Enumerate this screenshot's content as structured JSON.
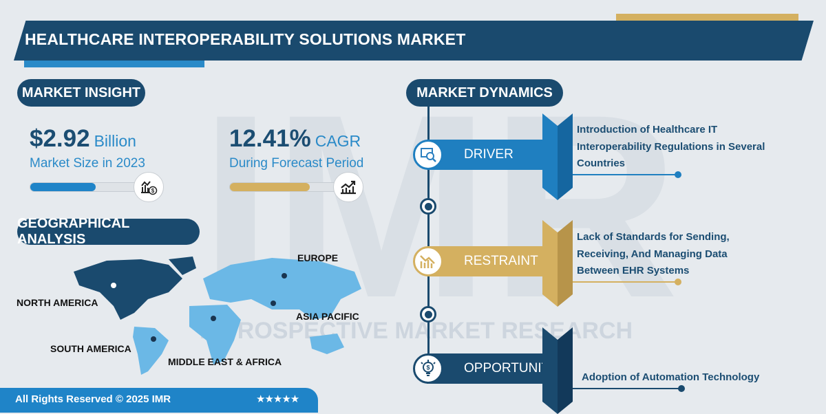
{
  "header": {
    "title": "HEALTHCARE INTEROPERABILITY SOLUTIONS MARKET"
  },
  "watermark": {
    "logo": "IMR",
    "text": "INTROSPECTIVE MARKET RESEARCH"
  },
  "market_insight": {
    "heading": "MARKET INSIGHT",
    "market_size": {
      "value": "$2.92",
      "unit": "Billion",
      "label": "Market Size in 2023",
      "progress_percent": 55,
      "icon": "chart-dollar-icon",
      "color": "#1f84c8"
    },
    "cagr": {
      "value": "12.41%",
      "unit": "CAGR",
      "label": "During Forecast Period",
      "progress_percent": 67,
      "icon": "growth-chart-icon",
      "color": "#d4b060"
    }
  },
  "geographical_analysis": {
    "heading": "GEOGRAPHICAL ANALYSIS",
    "regions": [
      "NORTH AMERICA",
      "SOUTH AMERICA",
      "EUROPE",
      "ASIA PACIFIC",
      "MIDDLE EAST & AFRICA"
    ],
    "highlight_color": "#1a4a6e",
    "base_color": "#6bb8e6"
  },
  "market_dynamics": {
    "heading": "MARKET DYNAMICS",
    "items": [
      {
        "label": "DRIVER",
        "icon": "analytics-search-icon",
        "color": "#1f7fc0",
        "text": [
          "Introduction of Healthcare IT",
          "Interoperability Regulations in Several",
          "Countries"
        ]
      },
      {
        "label": "RESTRAINT",
        "icon": "declining-chart-icon",
        "color": "#d4b060",
        "text": [
          "Lack of Standards for Sending,",
          "Receiving, And Managing Data",
          "Between EHR Systems"
        ]
      },
      {
        "label": "OPPORTUNITY",
        "icon": "lightbulb-dollar-icon",
        "color": "#1a4a6e",
        "text": [
          "Adoption of Automation Technology"
        ]
      }
    ]
  },
  "footer": {
    "copyright": "All Rights Reserved © 2025 IMR",
    "rating": "★★★★★"
  }
}
